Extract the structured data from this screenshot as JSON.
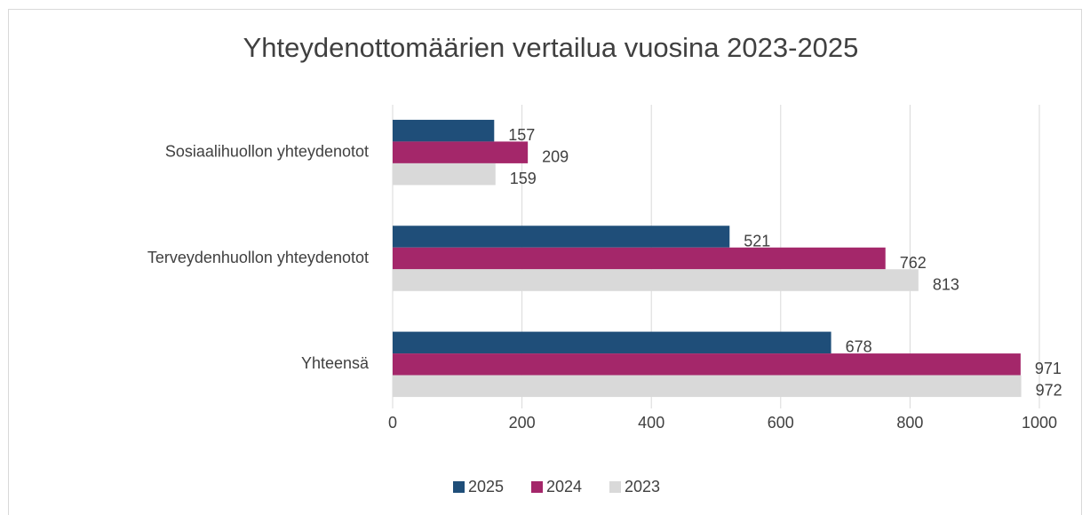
{
  "chart_data": {
    "type": "bar",
    "orientation": "horizontal",
    "title": "Yhteydenottomäärien vertailua vuosina  2023-2025",
    "categories": [
      "Sosiaalihuollon yhteydenotot",
      "Terveydenhuollon yhteydenotot",
      "Yhteensä"
    ],
    "series": [
      {
        "name": "2025",
        "color": "#1f4e79",
        "values": [
          157,
          521,
          678
        ]
      },
      {
        "name": "2024",
        "color": "#a4276a",
        "values": [
          209,
          762,
          971
        ]
      },
      {
        "name": "2023",
        "color": "#d9d9d9",
        "values": [
          159,
          813,
          972
        ]
      }
    ],
    "xlim": [
      0,
      1000
    ],
    "xticks": [
      0,
      200,
      400,
      600,
      800,
      1000
    ],
    "grid": true,
    "legend": "bottom"
  }
}
